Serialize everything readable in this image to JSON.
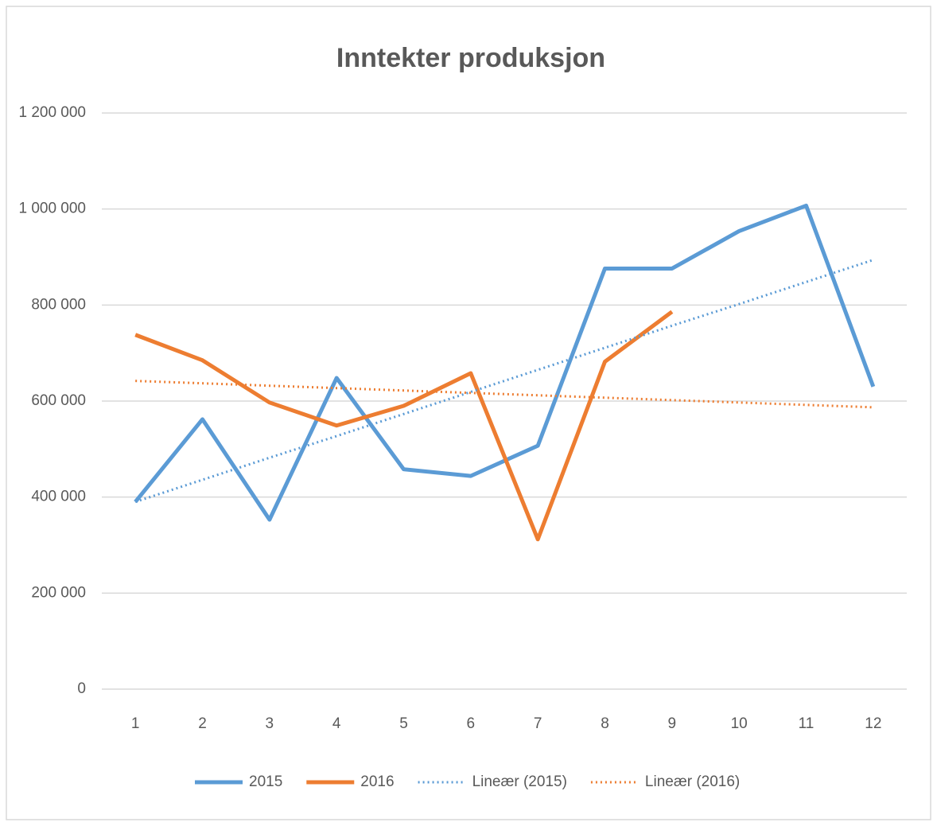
{
  "chart_data": {
    "type": "line",
    "title": "Inntekter produksjon",
    "categories": [
      "1",
      "2",
      "3",
      "4",
      "5",
      "6",
      "7",
      "8",
      "9",
      "10",
      "11",
      "12"
    ],
    "series": [
      {
        "name": "2015",
        "color": "#5b9bd5",
        "line_style": "solid",
        "values": [
          390000,
          562000,
          353000,
          648000,
          458000,
          444000,
          507000,
          876000,
          876000,
          954000,
          1007000,
          630000
        ]
      },
      {
        "name": "2016",
        "color": "#ed7d31",
        "line_style": "solid",
        "values": [
          738000,
          685000,
          597000,
          549000,
          590000,
          658000,
          312000,
          682000,
          786000,
          null,
          null,
          null
        ]
      },
      {
        "name": "Lineær (2015)",
        "color": "#5b9bd5",
        "line_style": "dotted",
        "values": [
          390000,
          436000,
          482000,
          527000,
          573000,
          619000,
          665000,
          711000,
          757000,
          802000,
          848000,
          894000
        ]
      },
      {
        "name": "Lineær (2016)",
        "color": "#ed7d31",
        "line_style": "dotted",
        "values": [
          642000,
          637000,
          632000,
          627000,
          622000,
          617000,
          612000,
          607000,
          602000,
          597000,
          592000,
          587000
        ]
      }
    ],
    "ylim": [
      0,
      1200000
    ],
    "yticks": [
      0,
      {
        "value": 200000,
        "label": "200 000"
      },
      {
        "value": 400000,
        "label": "400 000"
      },
      {
        "value": 600000,
        "label": "600 000"
      },
      {
        "value": 800000,
        "label": "800 000"
      },
      {
        "value": 1000000,
        "label": "1 000 000"
      },
      {
        "value": 1200000,
        "label": "1 200 000"
      }
    ],
    "grid": true,
    "legend": "bottom"
  }
}
